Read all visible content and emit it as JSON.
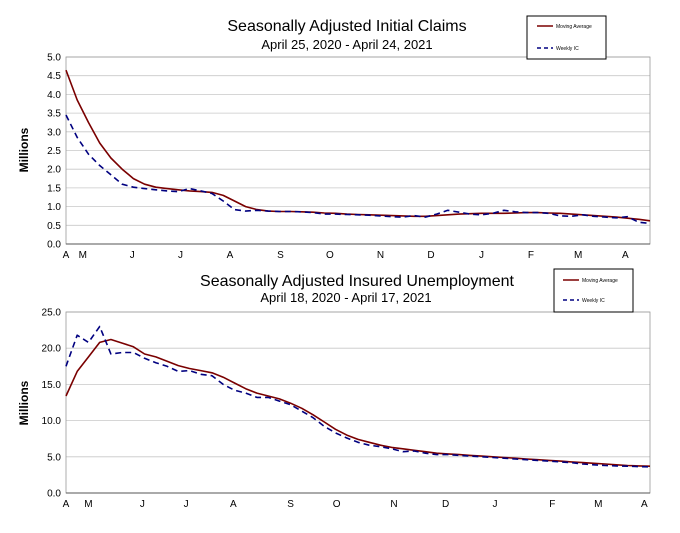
{
  "chart_data": [
    {
      "type": "line",
      "title": "Seasonally Adjusted Initial Claims",
      "subtitle": "April 25, 2020 - April 24, 2021",
      "xlabel": "",
      "ylabel": "Millions",
      "ylim": [
        0,
        5.0
      ],
      "yticks": [
        "0.0",
        "0.5",
        "1.0",
        "1.5",
        "2.0",
        "2.5",
        "3.0",
        "3.5",
        "4.0",
        "4.5",
        "5.0"
      ],
      "xtick_labels": [
        "A",
        "M",
        "J",
        "J",
        "A",
        "S",
        "O",
        "N",
        "D",
        "J",
        "F",
        "M",
        "A"
      ],
      "xtick_weeks": [
        0,
        1.5,
        5.9,
        10.2,
        14.6,
        19.1,
        23.5,
        28.0,
        32.5,
        37.0,
        41.4,
        45.6,
        49.8
      ],
      "x_weeks": 53,
      "legend": {
        "position": "top-right",
        "entries": [
          "Moving Average",
          "Weekly IC"
        ]
      },
      "series": [
        {
          "name": "Moving Average",
          "color": "#7a0000",
          "dash": "solid",
          "values": [
            4.65,
            3.85,
            3.25,
            2.7,
            2.3,
            2.0,
            1.75,
            1.6,
            1.52,
            1.48,
            1.45,
            1.42,
            1.4,
            1.38,
            1.3,
            1.15,
            1.0,
            0.92,
            0.88,
            0.87,
            0.87,
            0.86,
            0.85,
            0.83,
            0.82,
            0.8,
            0.79,
            0.78,
            0.77,
            0.76,
            0.75,
            0.74,
            0.74,
            0.76,
            0.78,
            0.8,
            0.81,
            0.82,
            0.82,
            0.82,
            0.83,
            0.84,
            0.84,
            0.83,
            0.82,
            0.8,
            0.78,
            0.76,
            0.74,
            0.72,
            0.69,
            0.66,
            0.62
          ]
        },
        {
          "name": "Weekly IC",
          "color": "#000080",
          "dash": "dashed",
          "values": [
            3.45,
            2.85,
            2.4,
            2.1,
            1.85,
            1.6,
            1.52,
            1.48,
            1.45,
            1.42,
            1.4,
            1.48,
            1.42,
            1.35,
            1.15,
            0.92,
            0.88,
            0.9,
            0.88,
            0.87,
            0.87,
            0.86,
            0.84,
            0.8,
            0.8,
            0.79,
            0.78,
            0.77,
            0.75,
            0.73,
            0.72,
            0.76,
            0.72,
            0.8,
            0.9,
            0.85,
            0.8,
            0.78,
            0.82,
            0.9,
            0.86,
            0.84,
            0.84,
            0.82,
            0.75,
            0.74,
            0.78,
            0.74,
            0.72,
            0.7,
            0.73,
            0.58,
            0.55
          ]
        }
      ]
    },
    {
      "type": "line",
      "title": "Seasonally Adjusted Insured Unemployment",
      "subtitle": "April 18, 2020 - April 17, 2021",
      "xlabel": "",
      "ylabel": "Millions",
      "ylim": [
        0,
        25.0
      ],
      "yticks": [
        "0.0",
        "5.0",
        "10.0",
        "15.0",
        "20.0",
        "25.0"
      ],
      "xtick_labels": [
        "A",
        "M",
        "J",
        "J",
        "A",
        "S",
        "O",
        "N",
        "D",
        "J",
        "F",
        "M",
        "A"
      ],
      "xtick_weeks": [
        0,
        2,
        6.8,
        10.7,
        14.9,
        20.0,
        24.1,
        29.2,
        33.8,
        38.2,
        43.3,
        47.4,
        51.5
      ],
      "x_weeks": 53,
      "legend": {
        "position": "top-right",
        "entries": [
          "Moving Average",
          "Weekly IC"
        ]
      },
      "series": [
        {
          "name": "Moving Average",
          "color": "#7a0000",
          "dash": "solid",
          "values": [
            13.4,
            16.8,
            18.8,
            20.8,
            21.2,
            20.7,
            20.2,
            19.2,
            18.8,
            18.2,
            17.6,
            17.2,
            16.9,
            16.6,
            16.0,
            15.2,
            14.4,
            13.8,
            13.4,
            13.0,
            12.4,
            11.7,
            10.8,
            9.8,
            8.8,
            8.0,
            7.4,
            7.0,
            6.6,
            6.3,
            6.1,
            5.9,
            5.7,
            5.5,
            5.4,
            5.3,
            5.2,
            5.1,
            5.0,
            4.9,
            4.8,
            4.7,
            4.6,
            4.5,
            4.4,
            4.3,
            4.2,
            4.1,
            4.0,
            3.9,
            3.8,
            3.75,
            3.7
          ]
        },
        {
          "name": "Weekly IC",
          "color": "#000080",
          "dash": "dashed",
          "values": [
            17.5,
            21.8,
            20.8,
            23.0,
            19.2,
            19.4,
            19.4,
            18.6,
            18.0,
            17.5,
            16.8,
            16.9,
            16.4,
            16.2,
            15.0,
            14.2,
            13.8,
            13.2,
            13.2,
            12.7,
            12.2,
            11.3,
            10.4,
            9.2,
            8.3,
            7.6,
            7.0,
            6.6,
            6.4,
            6.1,
            5.7,
            5.8,
            5.5,
            5.3,
            5.3,
            5.2,
            5.1,
            5.0,
            4.9,
            4.8,
            4.7,
            4.6,
            4.5,
            4.4,
            4.3,
            4.2,
            4.0,
            3.9,
            3.8,
            3.75,
            3.7,
            3.65,
            3.6
          ]
        }
      ]
    }
  ]
}
